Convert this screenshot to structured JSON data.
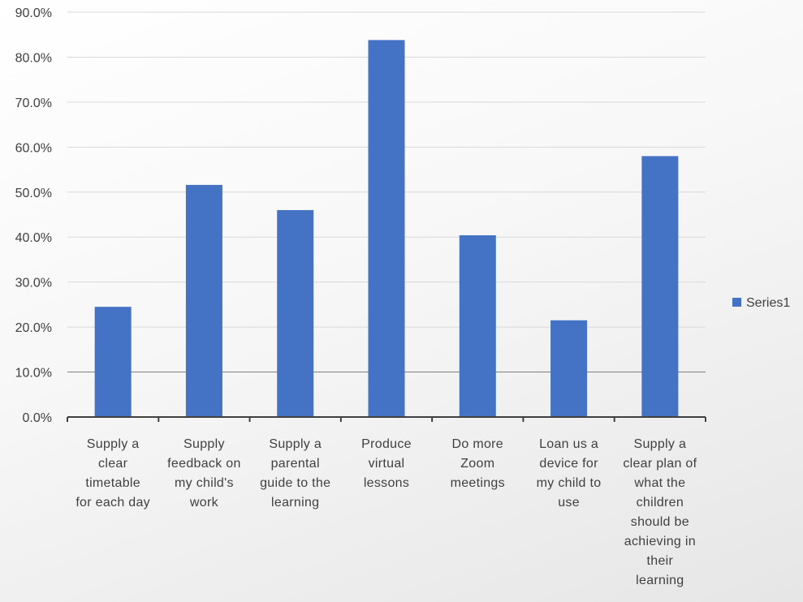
{
  "chart_data": {
    "type": "bar",
    "categories": [
      [
        "Supply a",
        "clear",
        "timetable",
        "for each day"
      ],
      [
        "Supply",
        "feedback on",
        "my child's",
        "work"
      ],
      [
        "Supply a",
        "parental",
        "guide to the",
        "learning"
      ],
      [
        "Produce",
        "virtual",
        "lessons"
      ],
      [
        "Do more",
        "Zoom",
        "meetings"
      ],
      [
        "Loan us a",
        "device for",
        "my child to",
        "use"
      ],
      [
        "Supply a",
        "clear plan of",
        "what the",
        "children",
        "should be",
        "achieving in",
        "their",
        "learning"
      ]
    ],
    "series": [
      {
        "name": "Series1",
        "values": [
          24.5,
          51.6,
          46.0,
          83.8,
          40.4,
          21.5,
          58.0
        ]
      }
    ],
    "ylim": [
      0,
      90
    ],
    "yticks": [
      "0.0%",
      "10.0%",
      "20.0%",
      "30.0%",
      "40.0%",
      "50.0%",
      "60.0%",
      "70.0%",
      "80.0%",
      "90.0%"
    ],
    "grid": true,
    "legend": "right",
    "colors": {
      "bar": "#4472C4",
      "grid": "#D9D9D9",
      "axis": "#404040"
    }
  }
}
